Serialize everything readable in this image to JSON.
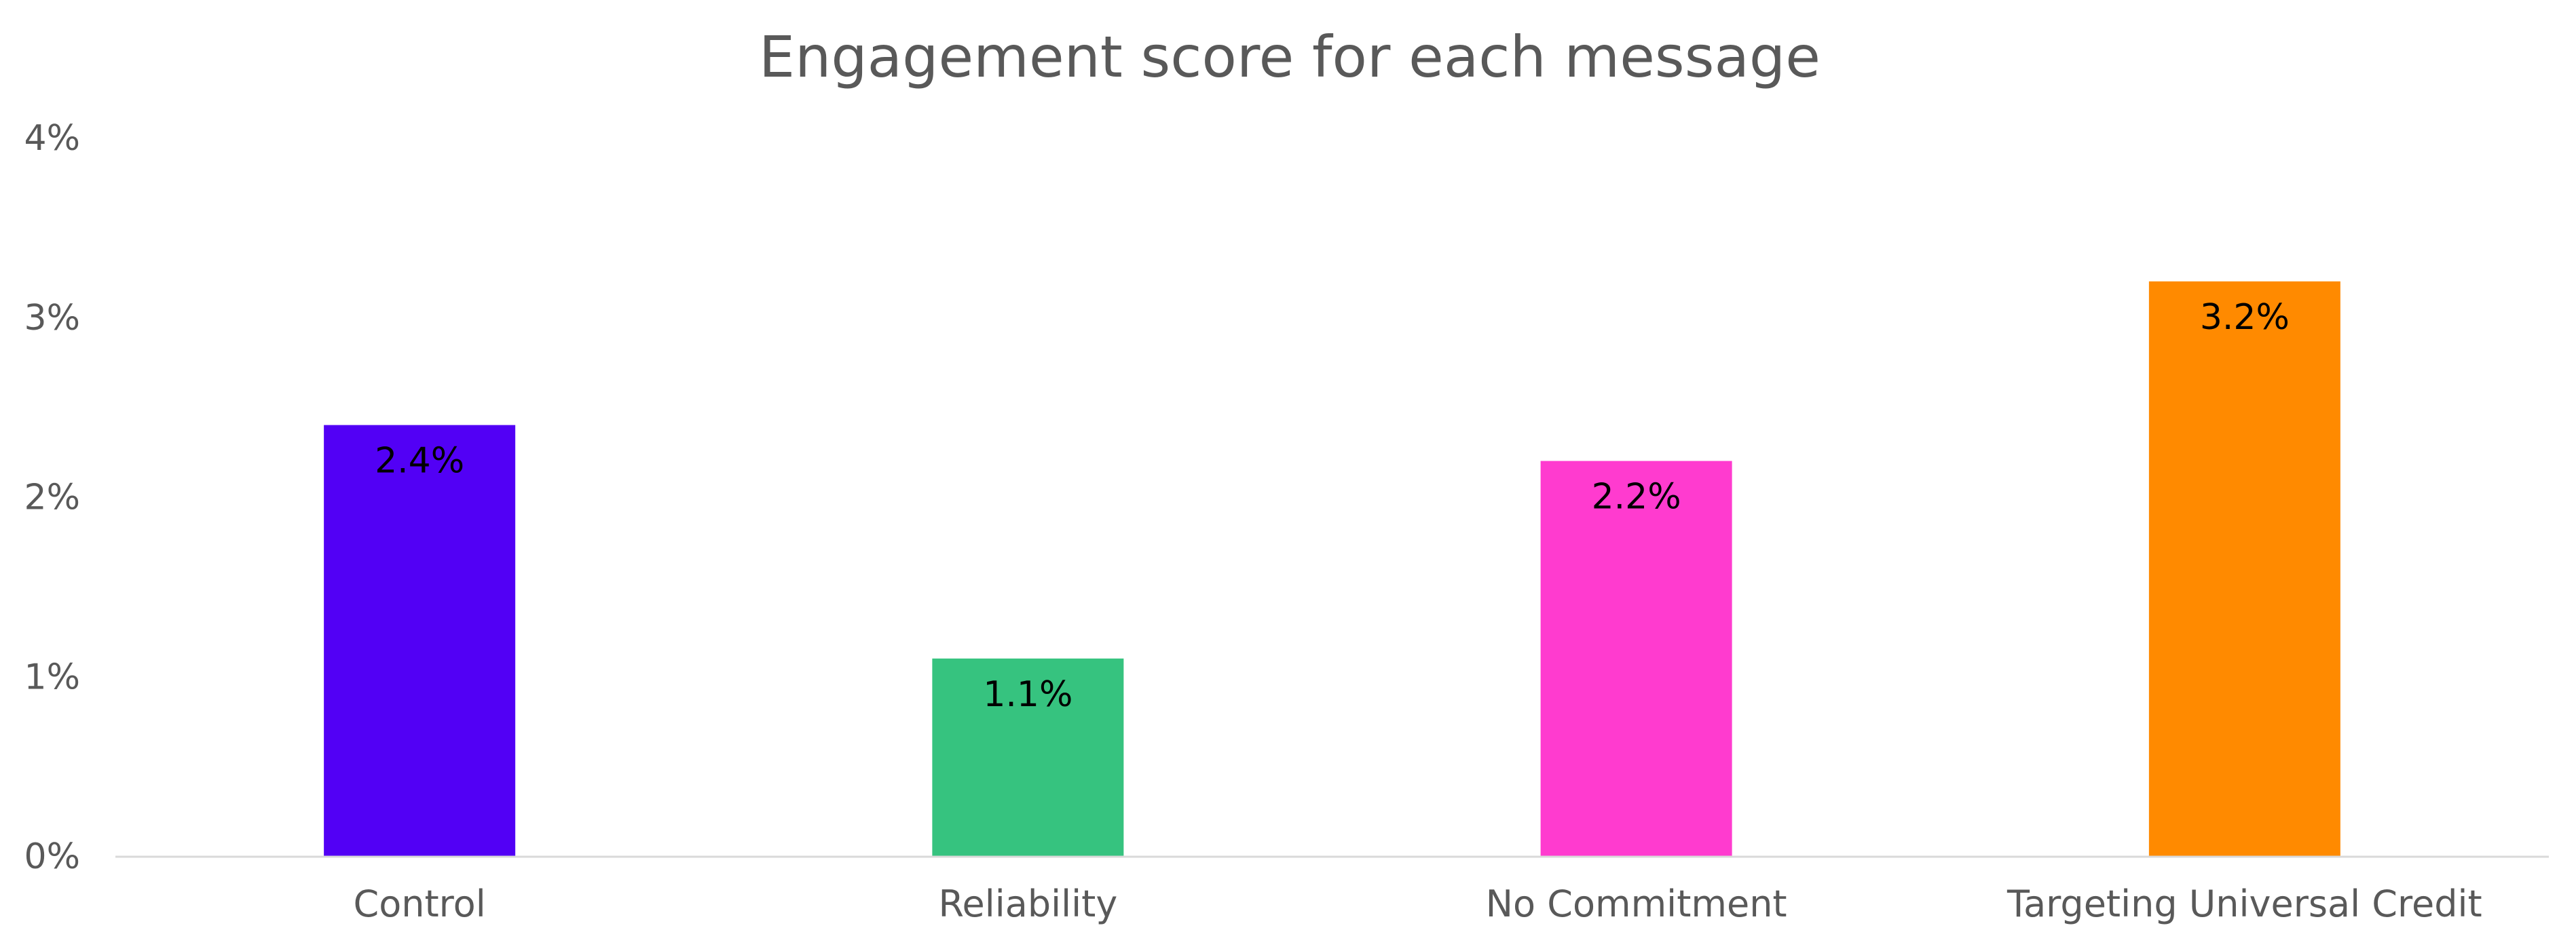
{
  "chart_data": {
    "type": "bar",
    "title": "Engagement score for each message",
    "xlabel": "",
    "ylabel": "",
    "categories": [
      "Control",
      "Reliability",
      "No Commitment",
      "Targeting Universal Credit"
    ],
    "values": [
      2.4,
      1.1,
      2.2,
      3.2
    ],
    "data_labels": [
      "2.4%",
      "1.1%",
      "2.2%",
      "3.2%"
    ],
    "colors": [
      "#5200F5",
      "#36C37F",
      "#FF3BCF",
      "#FF8A00"
    ],
    "ylim": [
      0,
      4
    ],
    "yticks": [
      0,
      1,
      2,
      3,
      4
    ],
    "ytick_labels": [
      "0%",
      "1%",
      "2%",
      "3%",
      "4%"
    ],
    "grid": false,
    "legend": "none",
    "axis_color": "#D9D9D9"
  }
}
